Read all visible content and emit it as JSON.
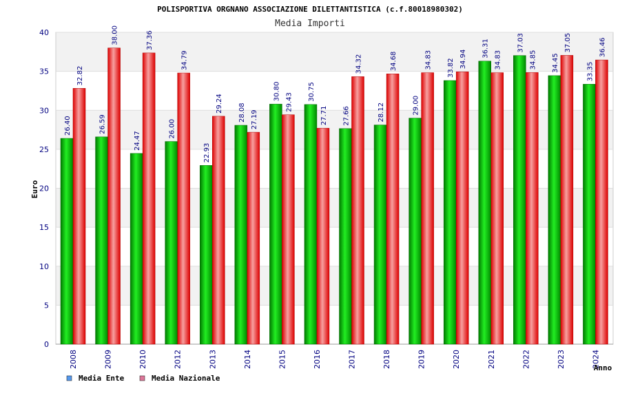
{
  "chart_data": {
    "type": "bar",
    "title": "POLISPORTIVA ORGNANO ASSOCIAZIONE DILETTANTISTICA (c.f.80018980302)",
    "subtitle": "Media Importi",
    "xlabel": "Anno",
    "ylabel": "Euro",
    "ylim": [
      0,
      40
    ],
    "yticks": [
      0,
      5,
      10,
      15,
      20,
      25,
      30,
      35,
      40
    ],
    "grid": true,
    "legend_position": "bottom-left",
    "categories": [
      "2008",
      "2009",
      "2010",
      "2012",
      "2013",
      "2014",
      "2015",
      "2016",
      "2017",
      "2018",
      "2019",
      "2020",
      "2021",
      "2022",
      "2023",
      "2024"
    ],
    "series": [
      {
        "name": "Media Ente",
        "color": "#00aa00",
        "legend_color": "#5599ee",
        "values": [
          26.4,
          26.59,
          24.47,
          26.0,
          22.93,
          28.08,
          30.8,
          30.75,
          27.66,
          28.12,
          29.0,
          33.82,
          36.31,
          37.03,
          34.45,
          33.35
        ],
        "labels": [
          "26.40",
          "26.59",
          "24.47",
          "26.00",
          "22.93",
          "28.08",
          "30.80",
          "30.75",
          "27.66",
          "28.12",
          "29.00",
          "33.82",
          "36.31",
          "37.03",
          "34.45",
          "33.35"
        ]
      },
      {
        "name": "Media Nazionale",
        "color": "#ee1111",
        "legend_color": "#dd7799",
        "values": [
          32.82,
          38.0,
          37.36,
          34.79,
          29.24,
          27.19,
          29.43,
          27.71,
          34.32,
          34.68,
          34.83,
          34.94,
          34.83,
          34.85,
          37.05,
          36.46
        ],
        "labels": [
          "32.82",
          "38.00",
          "37.36",
          "34.79",
          "29.24",
          "27.19",
          "29.43",
          "27.71",
          "34.32",
          "34.68",
          "34.83",
          "34.94",
          "34.83",
          "34.85",
          "37.05",
          "36.46"
        ]
      }
    ]
  }
}
